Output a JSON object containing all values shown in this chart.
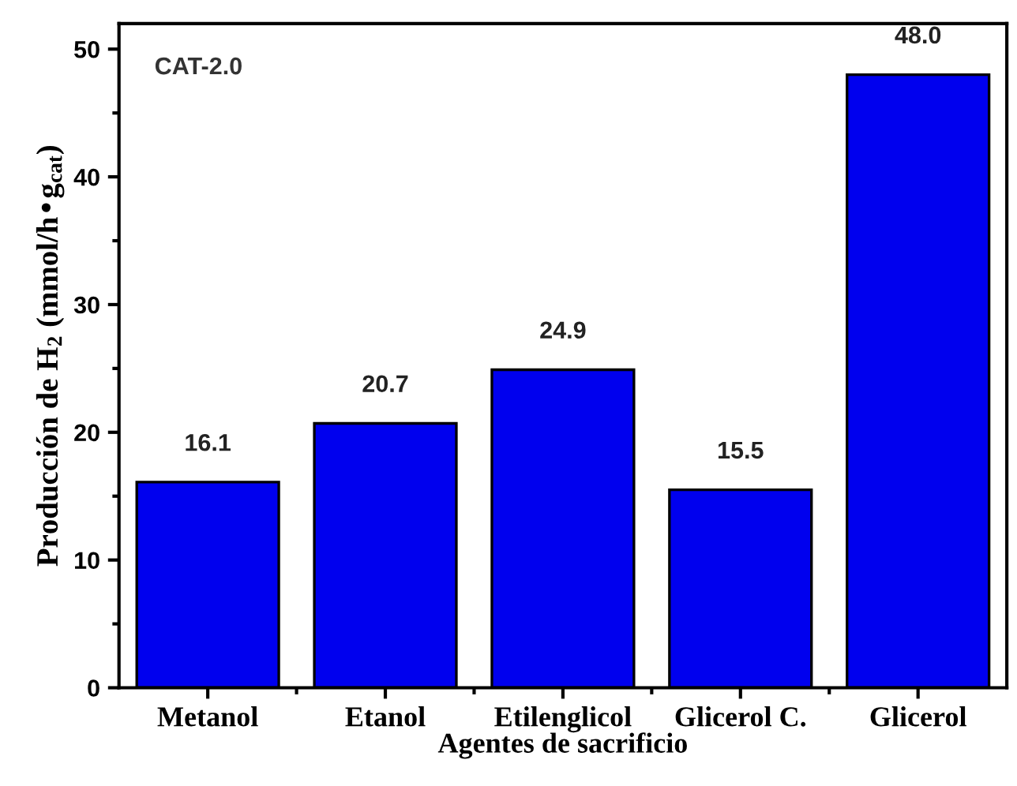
{
  "chart_data": {
    "type": "bar",
    "xlabel": "Agentes de sacrificio",
    "ylabel": "Producción de H$_{2}$ (mmol/h•g$_{cat}$)",
    "categories": [
      "Metanol",
      "Etanol",
      "Etilenglicol",
      "Glicerol C.",
      "Glicerol"
    ],
    "values": [
      16.1,
      20.7,
      24.9,
      15.5,
      48.0
    ],
    "value_labels": [
      "16.1",
      "20.7",
      "24.9",
      "15.5",
      "48.0"
    ],
    "color": "#0000ee",
    "ylim": [
      0,
      52
    ],
    "yticks": [
      0,
      {
        "value": 5,
        "label": null
      },
      10,
      {
        "value": 15,
        "label": null
      },
      20,
      {
        "value": 25,
        "label": null
      },
      30,
      {
        "value": 35,
        "label": null
      },
      40,
      {
        "value": 45,
        "label": null
      },
      50
    ],
    "annotations": [
      "CAT-2.0"
    ],
    "grid": false
  }
}
